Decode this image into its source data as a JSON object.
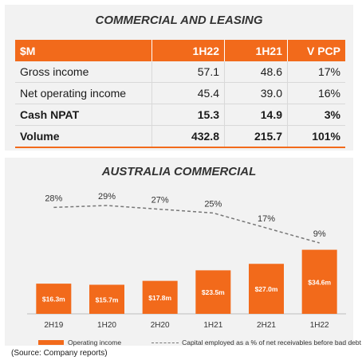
{
  "table": {
    "title": "COMMERCIAL AND LEASING",
    "headers": [
      "$M",
      "1H22",
      "1H21",
      "V PCP"
    ],
    "rows": [
      {
        "label": "Gross income",
        "h1h22": "57.1",
        "h1h21": "48.6",
        "vpcp": "17%",
        "bold": false
      },
      {
        "label": "Net operating income",
        "h1h22": "45.4",
        "h1h21": "39.0",
        "vpcp": "16%",
        "bold": false
      },
      {
        "label": "Cash NPAT",
        "h1h22": "15.3",
        "h1h21": "14.9",
        "vpcp": "3%",
        "bold": true
      },
      {
        "label": "Volume",
        "h1h22": "432.8",
        "h1h21": "215.7",
        "vpcp": "101%",
        "bold": true
      }
    ]
  },
  "chart_data": {
    "type": "bar",
    "title": "AUSTRALIA COMMERCIAL",
    "categories": [
      "2H19",
      "1H20",
      "2H20",
      "1H21",
      "2H21",
      "1H22"
    ],
    "series": [
      {
        "name": "Operating income",
        "kind": "bar",
        "color": "#f26a1b",
        "values": [
          16.3,
          15.7,
          17.8,
          23.5,
          27.0,
          34.6
        ],
        "labels": [
          "$16.3m",
          "$15.7m",
          "$17.8m",
          "$23.5m",
          "$27.0m",
          "$34.6m"
        ]
      },
      {
        "name": "Capital employed as a % of net receivables before bad debt",
        "kind": "line",
        "color": "#777777",
        "values": [
          28,
          29,
          27,
          25,
          17,
          9
        ],
        "labels": [
          "28%",
          "29%",
          "27%",
          "25%",
          "17%",
          "9%"
        ]
      }
    ],
    "bar_range": [
      0,
      37
    ],
    "line_range": [
      0,
      30
    ],
    "legend_position": "bottom"
  },
  "source": "(Source: Company reports)"
}
